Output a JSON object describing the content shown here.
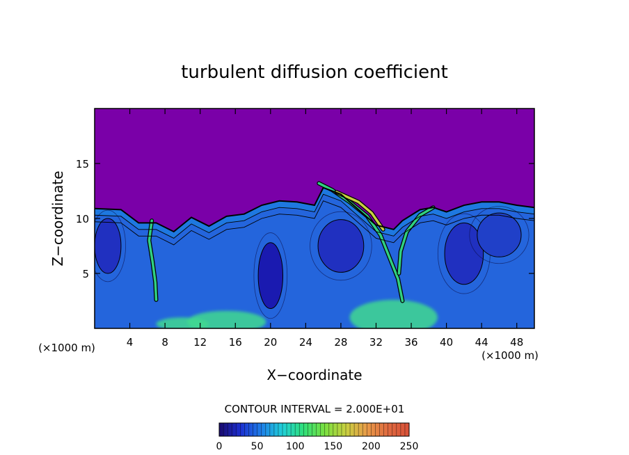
{
  "chart_data": {
    "type": "heatmap",
    "title": "turbulent diffusion coefficient",
    "xlabel": "X−coordinate",
    "ylabel": "Z−coordinate",
    "x_unit_left": "(×1000 m)",
    "x_unit_right": "(×1000 m)",
    "x_ticks": [
      4,
      8,
      12,
      16,
      20,
      24,
      28,
      32,
      36,
      40,
      44,
      48
    ],
    "y_ticks": [
      5,
      10,
      15
    ],
    "xlim": [
      0,
      50
    ],
    "ylim": [
      0,
      20
    ],
    "contour_interval_text": "CONTOUR INTERVAL = 2.000E+01",
    "colorbar": {
      "range": [
        0,
        250
      ],
      "ticks": [
        0,
        50,
        100,
        150,
        200,
        250
      ],
      "colors": [
        "#1a0a6e",
        "#1c2fd0",
        "#1e7fe8",
        "#20d0d8",
        "#30e07a",
        "#7ae040",
        "#c8d040",
        "#e89a48",
        "#e06a40",
        "#d85038"
      ]
    },
    "field": {
      "background_color": "#7a00a8",
      "boundary_top_km": [
        [
          0,
          10.9
        ],
        [
          3,
          10.8
        ],
        [
          5,
          9.6
        ],
        [
          7,
          9.6
        ],
        [
          9,
          8.8
        ],
        [
          11,
          10.1
        ],
        [
          13,
          9.3
        ],
        [
          15,
          10.2
        ],
        [
          17,
          10.4
        ],
        [
          19,
          11.2
        ],
        [
          21,
          11.6
        ],
        [
          23,
          11.5
        ],
        [
          25,
          11.2
        ],
        [
          26,
          12.8
        ],
        [
          28,
          12.2
        ],
        [
          30,
          10.8
        ],
        [
          32,
          9.4
        ],
        [
          34,
          9.0
        ],
        [
          35,
          9.8
        ],
        [
          37,
          10.8
        ],
        [
          38.5,
          11.0
        ],
        [
          40,
          10.6
        ],
        [
          42,
          11.2
        ],
        [
          44,
          11.5
        ],
        [
          46,
          11.5
        ],
        [
          48,
          11.2
        ],
        [
          50,
          11.0
        ]
      ],
      "filaments": [
        {
          "pts": [
            [
              25.5,
              13.2
            ],
            [
              27,
              12.6
            ],
            [
              29,
              11.5
            ],
            [
              31,
              10.2
            ],
            [
              32.5,
              8.5
            ],
            [
              33.5,
              6.5
            ],
            [
              34.5,
              4.5
            ],
            [
              35,
              2.5
            ]
          ],
          "color": "#30d080"
        },
        {
          "pts": [
            [
              27.5,
              12.4
            ],
            [
              30,
              11.5
            ],
            [
              31.5,
              10.5
            ],
            [
              32.8,
              9.0
            ]
          ],
          "color": "#c8d040"
        },
        {
          "pts": [
            [
              38.5,
              11.0
            ],
            [
              37,
              10.3
            ],
            [
              35.5,
              8.8
            ],
            [
              34.8,
              7.0
            ],
            [
              34.6,
              5.0
            ]
          ],
          "color": "#30d080"
        },
        {
          "pts": [
            [
              6.5,
              9.8
            ],
            [
              6.2,
              8.0
            ],
            [
              6.6,
              6.0
            ],
            [
              6.9,
              4.2
            ],
            [
              7.0,
              2.6
            ]
          ],
          "color": "#30d080"
        }
      ],
      "cores": [
        {
          "cx": 20,
          "cz": 4.8,
          "rx": 1.4,
          "rz": 3.0,
          "color": "#1a1ab0"
        },
        {
          "cx": 28,
          "cz": 7.5,
          "rx": 2.6,
          "rz": 2.4,
          "color": "#2030c0"
        },
        {
          "cx": 42,
          "cz": 6.8,
          "rx": 2.2,
          "rz": 2.8,
          "color": "#2030c0"
        },
        {
          "cx": 46,
          "cz": 8.5,
          "rx": 2.5,
          "rz": 2.0,
          "color": "#2040c8"
        },
        {
          "cx": 1.5,
          "cz": 7.5,
          "rx": 1.5,
          "rz": 2.5,
          "color": "#2030c0"
        }
      ],
      "bottom_green_zones": [
        {
          "cx": 15,
          "cz": 0.6,
          "rx": 4.5,
          "rz": 1.0
        },
        {
          "cx": 34,
          "cz": 1.0,
          "rx": 5.0,
          "rz": 1.6
        },
        {
          "cx": 10,
          "cz": 0.4,
          "rx": 3.0,
          "rz": 0.6
        }
      ]
    }
  }
}
